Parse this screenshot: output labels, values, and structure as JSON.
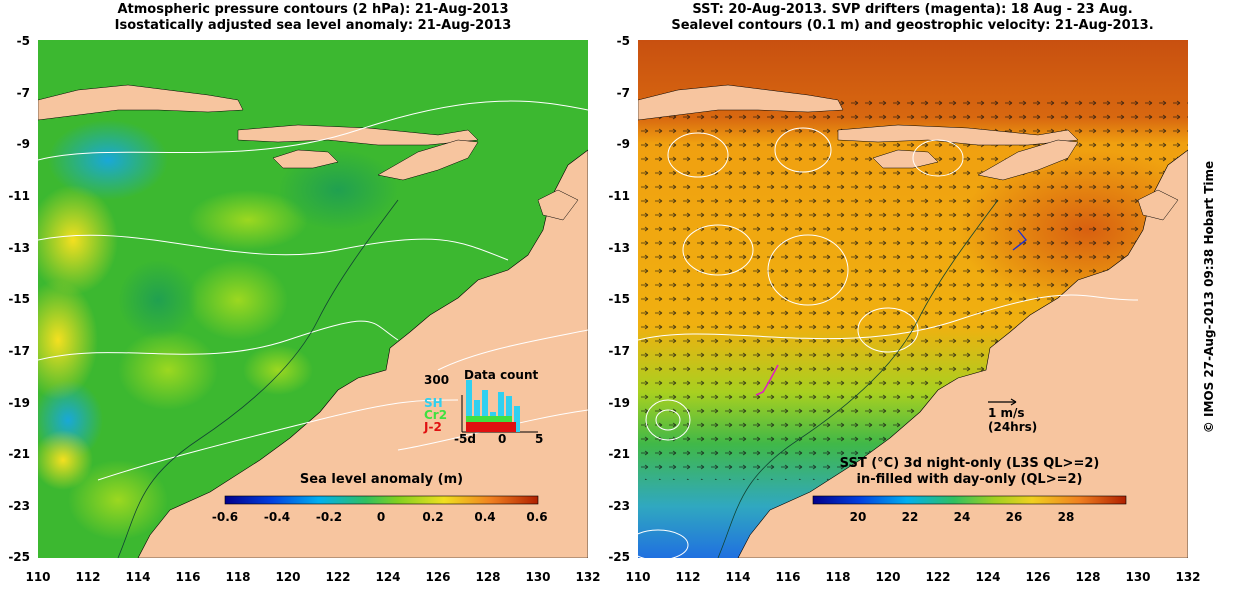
{
  "left": {
    "title_line1": "Atmospheric pressure contours (2 hPa): 21-Aug-2013",
    "title_line2": "Isostatically adjusted sea level anomaly: 21-Aug-2013",
    "colorbar_title": "Sea level anomaly (m)",
    "colorbar_ticks": [
      "-0.6",
      "-0.4",
      "-0.2",
      "0",
      "0.2",
      "0.4",
      "0.6"
    ],
    "data_count": {
      "title": "Data count",
      "ymax": "300",
      "sat1": "SH",
      "sat2": "Cr2",
      "sat3": "J-2",
      "x_ticks": [
        "-5d",
        "0",
        "5"
      ]
    }
  },
  "right": {
    "title_line1": "SST: 20-Aug-2013. SVP drifters (magenta): 18 Aug - 23 Aug.",
    "title_line2": "Sealevel contours (0.1 m) and geostrophic velocity: 21-Aug-2013.",
    "colorbar_title_line1": "SST (°C)  3d night-only (L3S QL>=2)",
    "colorbar_title_line2": "in-filled with day-only (QL>=2)",
    "colorbar_ticks": [
      "20",
      "22",
      "24",
      "26",
      "28"
    ],
    "vector_label": "1 m/s",
    "vector_sub": "(24hrs)"
  },
  "axes": {
    "y_ticks": [
      "-5",
      "-7",
      "-9",
      "-11",
      "-13",
      "-15",
      "-17",
      "-19",
      "-21",
      "-23",
      "-25"
    ],
    "x_ticks": [
      "110",
      "112",
      "114",
      "116",
      "118",
      "120",
      "122",
      "124",
      "126",
      "128",
      "130",
      "132"
    ]
  },
  "credit": "© IMOS 27-Aug-2013 09:38 Hobart Time",
  "colors": {
    "land": "#f7c59f",
    "sla_green": "#3cb830",
    "sst_orange": "#f0a010",
    "sst_red": "#c85010"
  }
}
